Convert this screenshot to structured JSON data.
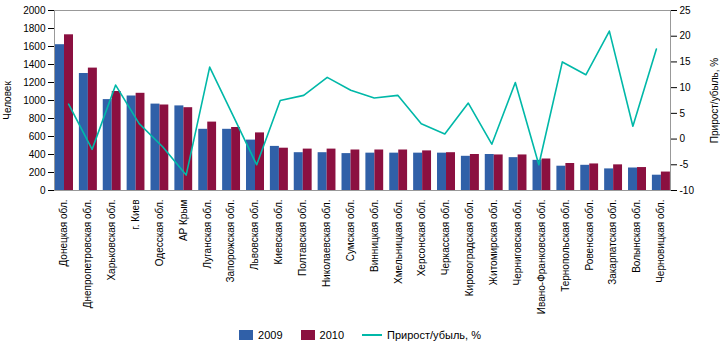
{
  "chart_data": {
    "type": "bar",
    "categories": [
      "Донецкая обл.",
      "Днепропетровская обл.",
      "Харьковская обл.",
      "г. Киев",
      "Одесская обл.",
      "АР Крым",
      "Луганская обл.",
      "Запорожская обл.",
      "Львовская обл.",
      "Киевская обл.",
      "Полтавская обл.",
      "Николаевская обл.",
      "Сумская обл.",
      "Винницкая обл.",
      "Хмельницкая обл.",
      "Херсонская обл.",
      "Черкасская обл.",
      "Кировоградская обл.",
      "Житомирская обл.",
      "Черниговская обл.",
      "Ивано-Франковская обл.",
      "Тернопольская обл.",
      "Ровенская обл.",
      "Закарпатская обл.",
      "Волынская обл.",
      "Черновицкая обл."
    ],
    "series": [
      {
        "name": "2009",
        "type": "bar",
        "color": "#3060a8",
        "values": [
          1620,
          1300,
          1010,
          1050,
          960,
          940,
          680,
          680,
          560,
          490,
          420,
          420,
          410,
          415,
          415,
          415,
          415,
          380,
          400,
          365,
          335,
          270,
          280,
          240,
          250,
          170
        ]
      },
      {
        "name": "2010",
        "type": "bar",
        "color": "#8b1040",
        "values": [
          1730,
          1360,
          1100,
          1080,
          950,
          920,
          760,
          700,
          640,
          470,
          460,
          460,
          450,
          450,
          450,
          440,
          420,
          400,
          395,
          395,
          350,
          300,
          295,
          285,
          255,
          205
        ]
      },
      {
        "name": "Прирост/убыль, %",
        "type": "line",
        "axis": "y2",
        "color": "#00b8a8",
        "values": [
          6.8,
          -2.0,
          10.5,
          3.0,
          -1.5,
          -7.0,
          14.0,
          4.5,
          -5.0,
          7.5,
          8.5,
          12.0,
          9.5,
          8.0,
          8.5,
          3.0,
          1.0,
          7.0,
          -1.0,
          11.0,
          -5.0,
          15.0,
          12.5,
          21.0,
          2.5,
          17.5
        ]
      }
    ],
    "ylabel": "Человек",
    "y2label": "Прирост/убыль, %",
    "ylim": [
      0,
      2000
    ],
    "yticks": [
      0,
      200,
      400,
      600,
      800,
      1000,
      1200,
      1400,
      1600,
      1800,
      2000
    ],
    "y2lim": [
      -10,
      25
    ],
    "y2ticks": [
      -10,
      -5,
      0,
      5,
      10,
      15,
      20,
      25
    ],
    "grid": false,
    "legend": "bottom"
  }
}
